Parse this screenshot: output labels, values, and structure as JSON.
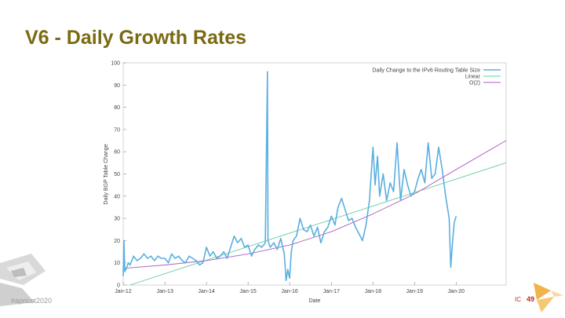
{
  "slide": {
    "title": "V6 - Daily Growth Rates",
    "hashtag": "#apricot2020",
    "slide_number": "49",
    "conference_mark": "IC"
  },
  "colors": {
    "title": "#7a6a12",
    "series_main": "#5aafe0",
    "linear": "#66cc99",
    "o2": "#b05cc0",
    "grid": "#d8d8d8",
    "accent": "#c1272d"
  },
  "chart_data": {
    "type": "line",
    "title": "",
    "xlabel": "Date",
    "ylabel": "Daily BGP Table Change",
    "ylim": [
      0,
      100
    ],
    "yticks": [
      0,
      10,
      20,
      30,
      40,
      50,
      60,
      70,
      80,
      90,
      100
    ],
    "xlim": [
      "2012-01-01",
      "2021-03-15"
    ],
    "xticks": [
      "Jan-12",
      "Jan-13",
      "Jan-14",
      "Jan-15",
      "Jan-16",
      "Jan-17",
      "Jan-18",
      "Jan-19",
      "Jan-20"
    ],
    "grid": false,
    "legend_position": "top-right",
    "series": [
      {
        "name": "Daily Change to the IPv6 Routing Table Size",
        "color": "#5aafe0",
        "points": [
          [
            "2012-01-01",
            4
          ],
          [
            "2012-01-08",
            20
          ],
          [
            "2012-01-15",
            6
          ],
          [
            "2012-02-01",
            8
          ],
          [
            "2012-02-15",
            10
          ],
          [
            "2012-03-01",
            9
          ],
          [
            "2012-04-01",
            13
          ],
          [
            "2012-05-01",
            11
          ],
          [
            "2012-06-01",
            12
          ],
          [
            "2012-07-01",
            14
          ],
          [
            "2012-08-01",
            12
          ],
          [
            "2012-09-01",
            13
          ],
          [
            "2012-10-01",
            11
          ],
          [
            "2012-11-01",
            13
          ],
          [
            "2012-12-01",
            12
          ],
          [
            "2013-01-01",
            12
          ],
          [
            "2013-02-01",
            10
          ],
          [
            "2013-03-01",
            14
          ],
          [
            "2013-04-01",
            12
          ],
          [
            "2013-05-01",
            13
          ],
          [
            "2013-06-01",
            11
          ],
          [
            "2013-07-01",
            10
          ],
          [
            "2013-08-01",
            13
          ],
          [
            "2013-09-01",
            12
          ],
          [
            "2013-10-01",
            11
          ],
          [
            "2013-11-01",
            9
          ],
          [
            "2013-12-01",
            10
          ],
          [
            "2014-01-01",
            17
          ],
          [
            "2014-02-01",
            13
          ],
          [
            "2014-03-01",
            15
          ],
          [
            "2014-04-01",
            12
          ],
          [
            "2014-05-01",
            13
          ],
          [
            "2014-06-01",
            15
          ],
          [
            "2014-07-01",
            12
          ],
          [
            "2014-08-01",
            17
          ],
          [
            "2014-09-01",
            22
          ],
          [
            "2014-10-01",
            19
          ],
          [
            "2014-11-01",
            21
          ],
          [
            "2014-12-01",
            17
          ],
          [
            "2015-01-01",
            18
          ],
          [
            "2015-02-01",
            13
          ],
          [
            "2015-03-01",
            16
          ],
          [
            "2015-04-01",
            18
          ],
          [
            "2015-05-01",
            17
          ],
          [
            "2015-06-01",
            19
          ],
          [
            "2015-06-20",
            96
          ],
          [
            "2015-06-25",
            20
          ],
          [
            "2015-07-15",
            17
          ],
          [
            "2015-08-15",
            19
          ],
          [
            "2015-09-15",
            16
          ],
          [
            "2015-10-15",
            21
          ],
          [
            "2015-11-15",
            14
          ],
          [
            "2015-12-01",
            2
          ],
          [
            "2015-12-15",
            7
          ],
          [
            "2016-01-01",
            3
          ],
          [
            "2016-01-15",
            15
          ],
          [
            "2016-02-01",
            20
          ],
          [
            "2016-03-01",
            22
          ],
          [
            "2016-04-01",
            30
          ],
          [
            "2016-05-01",
            25
          ],
          [
            "2016-06-01",
            24
          ],
          [
            "2016-07-01",
            27
          ],
          [
            "2016-08-01",
            22
          ],
          [
            "2016-09-01",
            26
          ],
          [
            "2016-10-01",
            19
          ],
          [
            "2016-11-01",
            24
          ],
          [
            "2016-12-01",
            26
          ],
          [
            "2017-01-01",
            31
          ],
          [
            "2017-02-01",
            27
          ],
          [
            "2017-03-01",
            35
          ],
          [
            "2017-04-01",
            39
          ],
          [
            "2017-05-01",
            34
          ],
          [
            "2017-06-01",
            29
          ],
          [
            "2017-07-01",
            30
          ],
          [
            "2017-08-01",
            26
          ],
          [
            "2017-09-01",
            23
          ],
          [
            "2017-10-01",
            20
          ],
          [
            "2017-11-01",
            27
          ],
          [
            "2017-12-01",
            38
          ],
          [
            "2018-01-01",
            62
          ],
          [
            "2018-01-20",
            45
          ],
          [
            "2018-02-10",
            58
          ],
          [
            "2018-03-01",
            40
          ],
          [
            "2018-04-01",
            50
          ],
          [
            "2018-05-01",
            38
          ],
          [
            "2018-06-01",
            46
          ],
          [
            "2018-07-01",
            42
          ],
          [
            "2018-08-01",
            64
          ],
          [
            "2018-09-01",
            38
          ],
          [
            "2018-10-01",
            52
          ],
          [
            "2018-11-01",
            45
          ],
          [
            "2018-12-01",
            40
          ],
          [
            "2019-01-01",
            42
          ],
          [
            "2019-02-01",
            48
          ],
          [
            "2019-03-01",
            52
          ],
          [
            "2019-04-01",
            46
          ],
          [
            "2019-05-01",
            64
          ],
          [
            "2019-06-01",
            48
          ],
          [
            "2019-07-01",
            50
          ],
          [
            "2019-08-01",
            62
          ],
          [
            "2019-09-01",
            52
          ],
          [
            "2019-10-01",
            40
          ],
          [
            "2019-11-01",
            30
          ],
          [
            "2019-11-15",
            8
          ],
          [
            "2019-12-01",
            20
          ],
          [
            "2019-12-15",
            28
          ],
          [
            "2020-01-01",
            31
          ]
        ]
      },
      {
        "name": "Linear",
        "color": "#66cc99",
        "points": [
          [
            "2012-03-01",
            0
          ],
          [
            "2021-03-15",
            55
          ]
        ]
      },
      {
        "name": "O(2)",
        "color": "#b05cc0",
        "points": [
          [
            "2012-01-01",
            7.5
          ],
          [
            "2013-01-01",
            9
          ],
          [
            "2014-01-01",
            11
          ],
          [
            "2015-01-01",
            14
          ],
          [
            "2016-01-01",
            18
          ],
          [
            "2017-01-01",
            24
          ],
          [
            "2018-01-01",
            32
          ],
          [
            "2019-01-01",
            41
          ],
          [
            "2020-01-01",
            52
          ],
          [
            "2021-03-15",
            65
          ]
        ]
      }
    ]
  }
}
